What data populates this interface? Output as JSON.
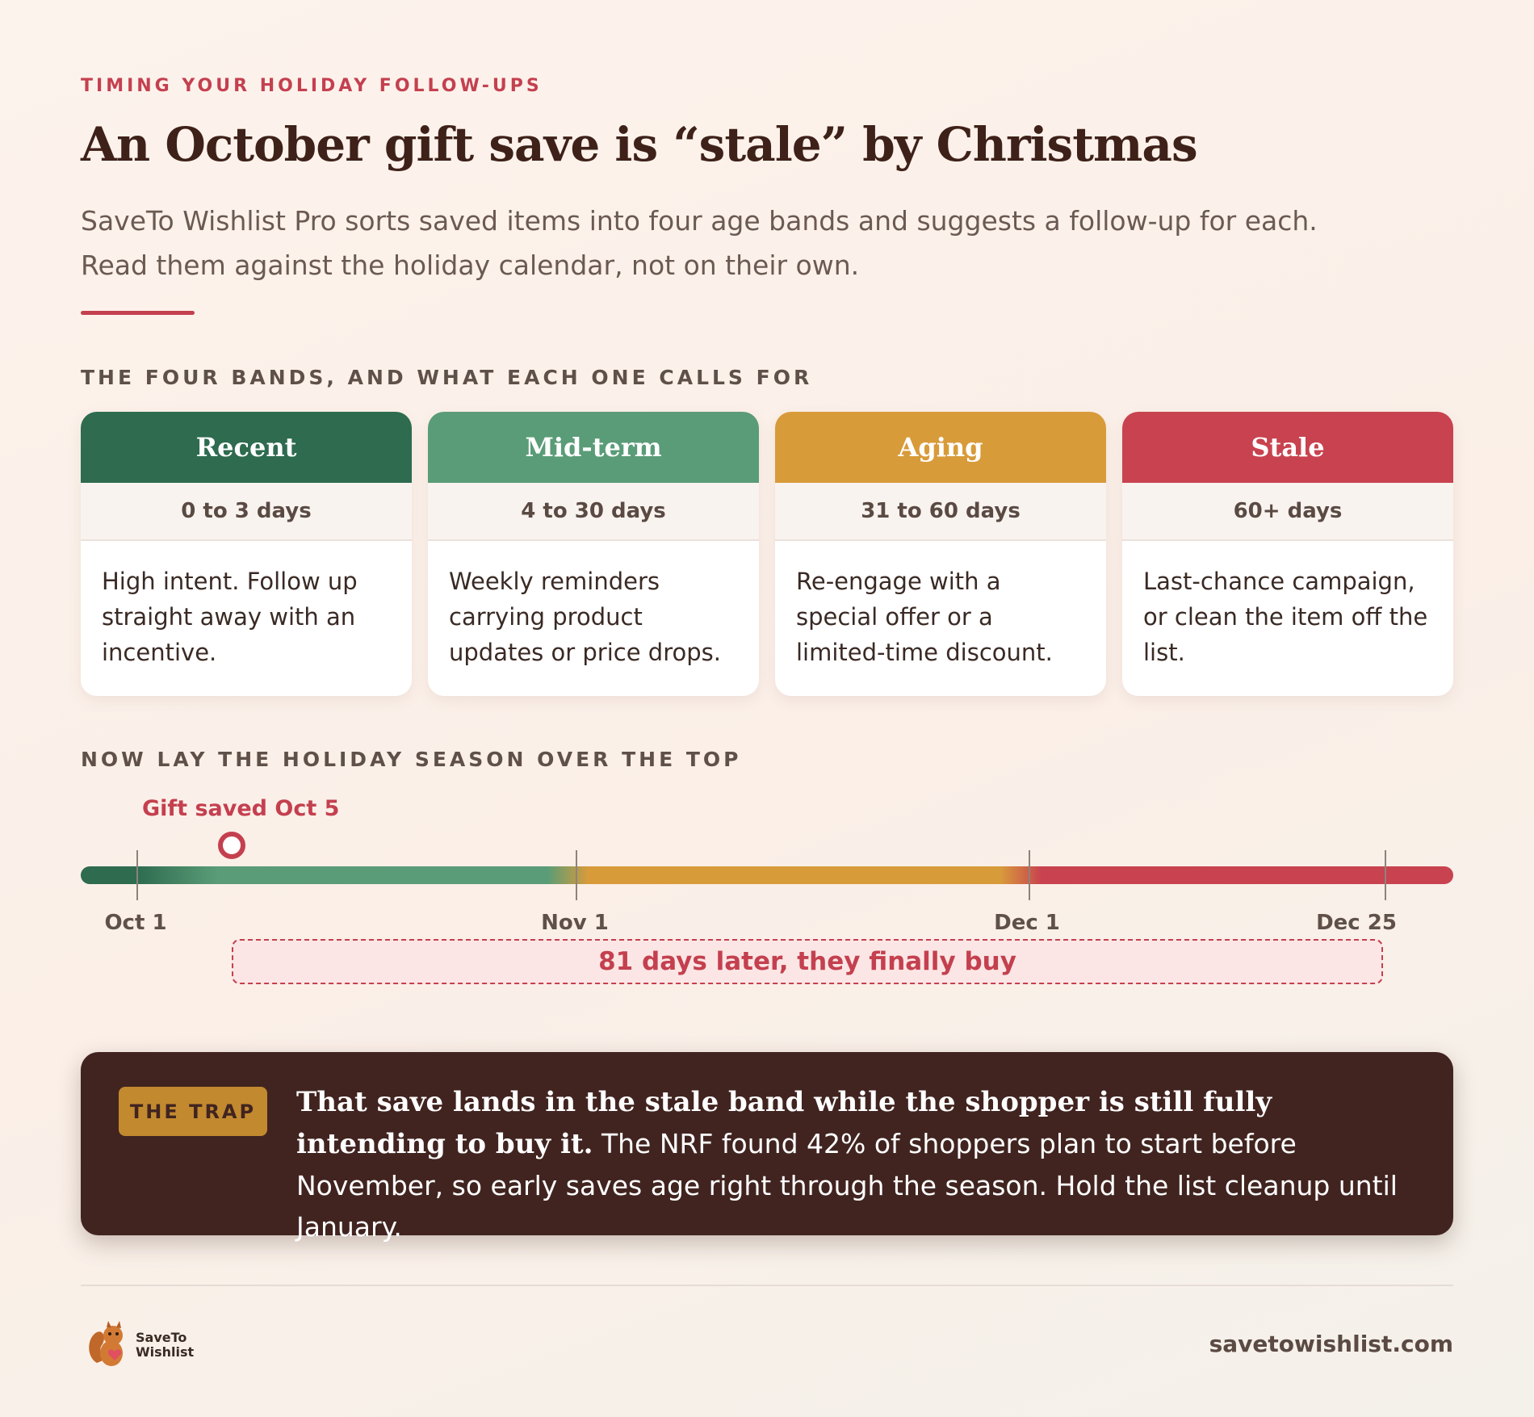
{
  "header": {
    "eyebrow": "TIMING YOUR HOLIDAY FOLLOW-UPS",
    "title": "An October gift save is “stale” by Christmas",
    "subtitle": "SaveTo Wishlist Pro sorts saved items into four age bands and suggests a follow-up for each. Read them against the holiday calendar, not on their own."
  },
  "bands_section": {
    "label": "THE FOUR BANDS, AND WHAT EACH ONE CALLS FOR",
    "bands": [
      {
        "name": "Recent",
        "range": "0 to 3 days",
        "description": "High intent. Follow up straight away with an incentive."
      },
      {
        "name": "Mid-term",
        "range": "4 to 30 days",
        "description": "Weekly reminders carrying product updates or price drops."
      },
      {
        "name": "Aging",
        "range": "31 to 60 days",
        "description": "Re-engage with a special offer or a limited-time discount."
      },
      {
        "name": "Stale",
        "range": "60+ days",
        "description": "Last-chance campaign, or clean the item off the list."
      }
    ]
  },
  "timeline": {
    "label": "NOW LAY THE HOLIDAY SEASON OVER THE TOP",
    "marker": "Gift saved Oct 5",
    "dates": [
      "Oct 1",
      "Nov 1",
      "Dec 1",
      "Dec 25"
    ],
    "span_note": "81 days later, they finally buy"
  },
  "callout": {
    "badge": "THE TRAP",
    "lead": "That save lands in the stale band while the shopper is still fully intending to buy it.",
    "text": "The NRF found 42% of shoppers plan to start before November, so early saves age right through the season. Hold the list cleanup until January."
  },
  "footer": {
    "logo_line1": "SaveTo",
    "logo_line2": "Wishlist",
    "site": "savetowishlist.com"
  }
}
